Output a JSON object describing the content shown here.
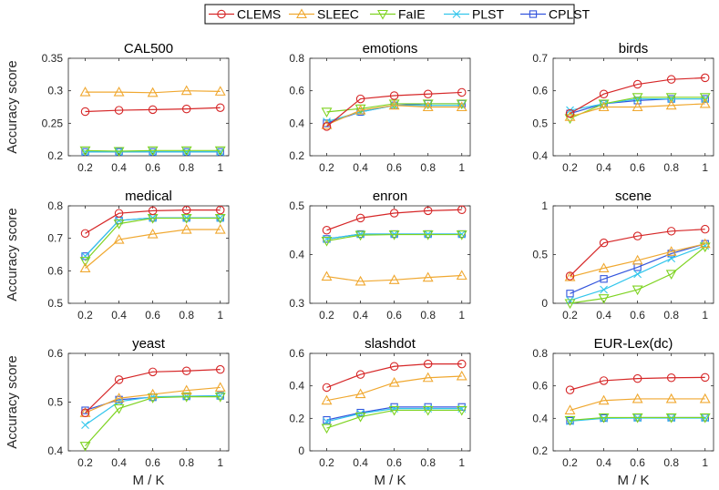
{
  "legend": {
    "items": [
      {
        "name": "CLEMS",
        "color": "#d62728",
        "marker": "circle"
      },
      {
        "name": "SLEEC",
        "color": "#f0a830",
        "marker": "triangle-up"
      },
      {
        "name": "FaIE",
        "color": "#7ed321",
        "marker": "triangle-down"
      },
      {
        "name": "PLST",
        "color": "#33c6ec",
        "marker": "x"
      },
      {
        "name": "CPLST",
        "color": "#3355dd",
        "marker": "square"
      }
    ]
  },
  "ylabel": "Accuracy score",
  "xlabel": "M / K",
  "chart_data": [
    {
      "type": "line",
      "title": "CAL500",
      "x": [
        0.2,
        0.4,
        0.6,
        0.8,
        1
      ],
      "ylim": [
        0.2,
        0.35
      ],
      "yticks": [
        "0.2",
        "0.25",
        "0.3",
        "0.35"
      ],
      "series": [
        {
          "name": "CLEMS",
          "values": [
            0.268,
            0.27,
            0.271,
            0.272,
            0.274
          ]
        },
        {
          "name": "SLEEC",
          "values": [
            0.298,
            0.298,
            0.297,
            0.3,
            0.299
          ]
        },
        {
          "name": "FaIE",
          "values": [
            0.208,
            0.207,
            0.208,
            0.208,
            0.208
          ]
        },
        {
          "name": "PLST",
          "values": [
            0.206,
            0.206,
            0.206,
            0.206,
            0.206
          ]
        },
        {
          "name": "CPLST",
          "values": [
            0.206,
            0.206,
            0.206,
            0.206,
            0.206
          ]
        }
      ]
    },
    {
      "type": "line",
      "title": "emotions",
      "x": [
        0.2,
        0.4,
        0.6,
        0.8,
        1
      ],
      "ylim": [
        0.2,
        0.8
      ],
      "yticks": [
        "0.2",
        "0.4",
        "0.6",
        "0.8"
      ],
      "series": [
        {
          "name": "CLEMS",
          "values": [
            0.38,
            0.55,
            0.57,
            0.58,
            0.59
          ]
        },
        {
          "name": "SLEEC",
          "values": [
            0.39,
            0.48,
            0.51,
            0.5,
            0.5
          ]
        },
        {
          "name": "FaIE",
          "values": [
            0.47,
            0.49,
            0.52,
            0.52,
            0.52
          ]
        },
        {
          "name": "PLST",
          "values": [
            0.41,
            0.47,
            0.51,
            0.51,
            0.51
          ]
        },
        {
          "name": "CPLST",
          "values": [
            0.4,
            0.47,
            0.51,
            0.52,
            0.52
          ]
        }
      ]
    },
    {
      "type": "line",
      "title": "birds",
      "x": [
        0.2,
        0.4,
        0.6,
        0.8,
        1
      ],
      "ylim": [
        0.4,
        0.7
      ],
      "yticks": [
        "0.4",
        "0.5",
        "0.6",
        "0.7"
      ],
      "series": [
        {
          "name": "CLEMS",
          "values": [
            0.53,
            0.59,
            0.62,
            0.635,
            0.64
          ]
        },
        {
          "name": "SLEEC",
          "values": [
            0.52,
            0.55,
            0.55,
            0.555,
            0.56
          ]
        },
        {
          "name": "FaIE",
          "values": [
            0.515,
            0.56,
            0.58,
            0.58,
            0.58
          ]
        },
        {
          "name": "PLST",
          "values": [
            0.54,
            0.56,
            0.575,
            0.575,
            0.575
          ]
        },
        {
          "name": "CPLST",
          "values": [
            0.53,
            0.56,
            0.57,
            0.575,
            0.575
          ]
        }
      ]
    },
    {
      "type": "line",
      "title": "medical",
      "x": [
        0.2,
        0.4,
        0.6,
        0.8,
        1
      ],
      "ylim": [
        0.5,
        0.8
      ],
      "yticks": [
        "0.5",
        "0.6",
        "0.7",
        "0.8"
      ],
      "series": [
        {
          "name": "CLEMS",
          "values": [
            0.715,
            0.777,
            0.785,
            0.787,
            0.787
          ]
        },
        {
          "name": "SLEEC",
          "values": [
            0.608,
            0.696,
            0.713,
            0.727,
            0.727
          ]
        },
        {
          "name": "FaIE",
          "values": [
            0.63,
            0.745,
            0.762,
            0.762,
            0.762
          ]
        },
        {
          "name": "PLST",
          "values": [
            0.645,
            0.755,
            0.763,
            0.763,
            0.763
          ]
        },
        {
          "name": "CPLST",
          "values": [
            0.645,
            0.755,
            0.763,
            0.763,
            0.763
          ]
        }
      ]
    },
    {
      "type": "line",
      "title": "enron",
      "x": [
        0.2,
        0.4,
        0.6,
        0.8,
        1
      ],
      "ylim": [
        0.3,
        0.5
      ],
      "yticks": [
        "0.3",
        "0.4",
        "0.5"
      ],
      "series": [
        {
          "name": "CLEMS",
          "values": [
            0.45,
            0.475,
            0.485,
            0.49,
            0.492
          ]
        },
        {
          "name": "SLEEC",
          "values": [
            0.355,
            0.345,
            0.348,
            0.353,
            0.357
          ]
        },
        {
          "name": "FaIE",
          "values": [
            0.428,
            0.44,
            0.441,
            0.441,
            0.441
          ]
        },
        {
          "name": "PLST",
          "values": [
            0.432,
            0.442,
            0.442,
            0.442,
            0.442
          ]
        },
        {
          "name": "CPLST",
          "values": [
            0.432,
            0.442,
            0.442,
            0.442,
            0.442
          ]
        }
      ]
    },
    {
      "type": "line",
      "title": "scene",
      "x": [
        0.2,
        0.4,
        0.6,
        0.8,
        1
      ],
      "ylim": [
        0,
        1
      ],
      "yticks": [
        "0",
        "0.5",
        "1"
      ],
      "series": [
        {
          "name": "CLEMS",
          "values": [
            0.28,
            0.62,
            0.69,
            0.74,
            0.76
          ]
        },
        {
          "name": "SLEEC",
          "values": [
            0.27,
            0.36,
            0.44,
            0.53,
            0.61
          ]
        },
        {
          "name": "FaIE",
          "values": [
            0.0,
            0.05,
            0.14,
            0.3,
            0.58
          ]
        },
        {
          "name": "PLST",
          "values": [
            0.03,
            0.14,
            0.3,
            0.46,
            0.59
          ]
        },
        {
          "name": "CPLST",
          "values": [
            0.1,
            0.25,
            0.37,
            0.51,
            0.61
          ]
        }
      ]
    },
    {
      "type": "line",
      "title": "yeast",
      "x": [
        0.2,
        0.4,
        0.6,
        0.8,
        1
      ],
      "ylim": [
        0.4,
        0.6
      ],
      "yticks": [
        "0.4",
        "0.5",
        "0.6"
      ],
      "series": [
        {
          "name": "CLEMS",
          "values": [
            0.478,
            0.546,
            0.562,
            0.564,
            0.567
          ]
        },
        {
          "name": "SLEEC",
          "values": [
            0.478,
            0.508,
            0.516,
            0.524,
            0.53
          ]
        },
        {
          "name": "FaIE",
          "values": [
            0.41,
            0.487,
            0.509,
            0.511,
            0.511
          ]
        },
        {
          "name": "PLST",
          "values": [
            0.453,
            0.501,
            0.511,
            0.512,
            0.513
          ]
        },
        {
          "name": "CPLST",
          "values": [
            0.483,
            0.505,
            0.51,
            0.512,
            0.513
          ]
        }
      ]
    },
    {
      "type": "line",
      "title": "slashdot",
      "x": [
        0.2,
        0.4,
        0.6,
        0.8,
        1
      ],
      "ylim": [
        0,
        0.6
      ],
      "yticks": [
        "0",
        "0.2",
        "0.4",
        "0.6"
      ],
      "series": [
        {
          "name": "CLEMS",
          "values": [
            0.39,
            0.47,
            0.52,
            0.535,
            0.535
          ]
        },
        {
          "name": "SLEEC",
          "values": [
            0.31,
            0.35,
            0.42,
            0.45,
            0.46
          ]
        },
        {
          "name": "FaIE",
          "values": [
            0.14,
            0.21,
            0.25,
            0.25,
            0.25
          ]
        },
        {
          "name": "PLST",
          "values": [
            0.18,
            0.23,
            0.26,
            0.26,
            0.26
          ]
        },
        {
          "name": "CPLST",
          "values": [
            0.19,
            0.235,
            0.27,
            0.27,
            0.27
          ]
        }
      ]
    },
    {
      "type": "line",
      "title": "EUR-Lex(dc)",
      "x": [
        0.2,
        0.4,
        0.6,
        0.8,
        1
      ],
      "ylim": [
        0.2,
        0.8
      ],
      "yticks": [
        "0.2",
        "0.4",
        "0.6",
        "0.8"
      ],
      "series": [
        {
          "name": "CLEMS",
          "values": [
            0.575,
            0.632,
            0.645,
            0.65,
            0.652
          ]
        },
        {
          "name": "SLEEC",
          "values": [
            0.45,
            0.51,
            0.52,
            0.52,
            0.52
          ]
        },
        {
          "name": "FaIE",
          "values": [
            0.388,
            0.405,
            0.405,
            0.405,
            0.405
          ]
        },
        {
          "name": "PLST",
          "values": [
            0.383,
            0.4,
            0.402,
            0.402,
            0.402
          ]
        },
        {
          "name": "CPLST",
          "values": [
            0.385,
            0.402,
            0.405,
            0.405,
            0.405
          ]
        }
      ]
    }
  ]
}
